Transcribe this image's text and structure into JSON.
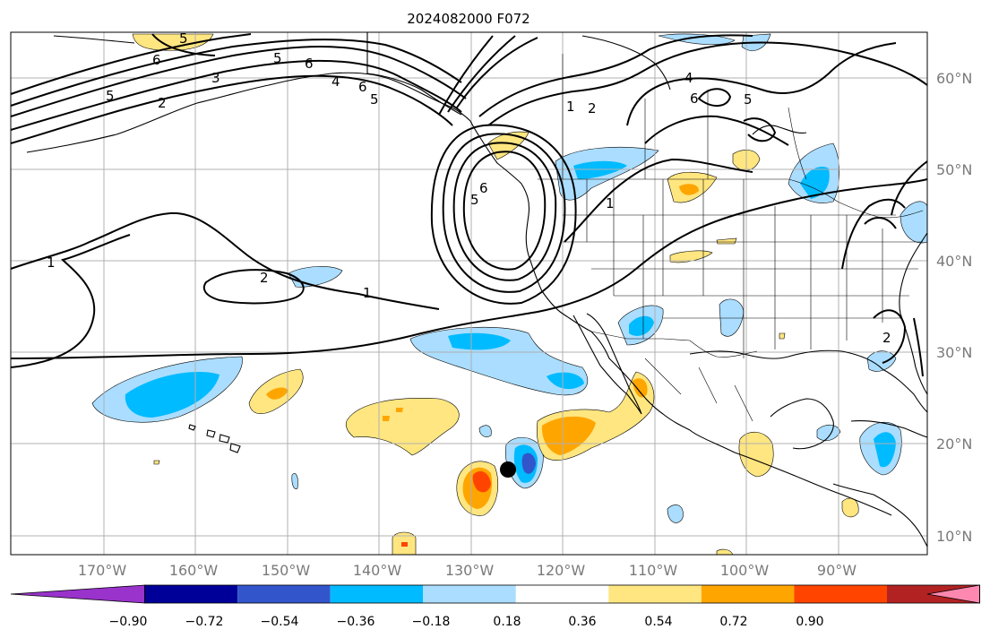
{
  "title": "2024082000 F072",
  "lon_labels": [
    "170°W",
    "160°W",
    "150°W",
    "140°W",
    "130°W",
    "120°W",
    "110°W",
    "100°W",
    "90°W"
  ],
  "lat_labels": [
    "60°N",
    "50°N",
    "40°N",
    "30°N",
    "20°N",
    "10°N"
  ],
  "colorbar": {
    "ticks": [
      "−0.90",
      "−0.72",
      "−0.54",
      "−0.36",
      "−0.18",
      "0.18",
      "0.36",
      "0.54",
      "0.72",
      "0.90"
    ],
    "colors": [
      "#9933cc",
      "#000099",
      "#3355cc",
      "#00bbff",
      "#aaddff",
      "#ffffff",
      "#ffe680",
      "#ffa500",
      "#ff4400",
      "#b22222",
      "#ff88b0"
    ]
  },
  "contour_labels": [
    "5",
    "2",
    "3",
    "6",
    "5",
    "4",
    "6",
    "5",
    "1",
    "2",
    "4",
    "6",
    "5",
    "5",
    "6",
    "5",
    "6",
    "2",
    "1",
    "1",
    "2",
    "1"
  ],
  "fill_colors": {
    "light_blue": "#aaddff",
    "blue": "#00bbff",
    "royal": "#3355cc",
    "yellow": "#ffe680",
    "orange": "#ffa500",
    "red": "#ff4400"
  },
  "marker": "storm-center-dot"
}
